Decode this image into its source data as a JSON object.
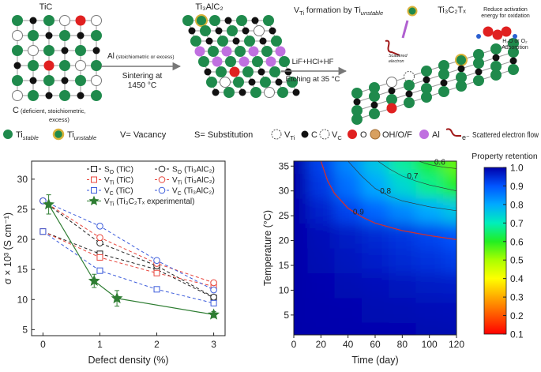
{
  "schematic": {
    "tic_title": "TiC",
    "max_title": "Ti₃AlC₂",
    "mxene_title": "Ti₃C₂Tₓ",
    "vti_formation": {
      "v": "V",
      "v_sub": "Ti",
      "text": " formation by Ti",
      "sub": "unstable"
    },
    "arrow1": {
      "top": "Al",
      "top_note": "(stoichiometric or excess)",
      "bottom": [
        "Sintering at",
        "1450 °C"
      ]
    },
    "arrow2": {
      "top": "LiF+HCl+HF",
      "bottom": "Etching at 35 °C"
    },
    "c_note": {
      "c": "C",
      "lines": [
        "(deficient, stoichiometric,",
        "excess)"
      ]
    },
    "oxidation": [
      "Reduce activation",
      "energy for oxidation"
    ],
    "adsorption": [
      "H₂O or O₂",
      "Adsorption"
    ],
    "scattered": [
      "Scattered",
      "electron"
    ],
    "legend": [
      {
        "label": "Ti",
        "sub": "stable"
      },
      {
        "label": "Ti",
        "sub": "unstable"
      },
      {
        "label": "V= Vacancy"
      },
      {
        "label": "S= Substitution"
      },
      {
        "label": "V",
        "sub": "Ti"
      },
      {
        "label": "C"
      },
      {
        "label": "V",
        "sub": "C"
      },
      {
        "label": "O"
      },
      {
        "label": "OH/O/F"
      },
      {
        "label": "Al"
      },
      {
        "label": "e⁻",
        "text": "Scattered electron flow"
      }
    ]
  },
  "chart_data": [
    {
      "type": "line",
      "ylabel": "σ × 10³ (S cm⁻¹)",
      "xlabel": "Defect density (%)",
      "xlim": [
        -0.2,
        3.2
      ],
      "ylim": [
        4,
        33
      ],
      "xticks": [
        0,
        1,
        2,
        3
      ],
      "yticks": [
        5,
        10,
        15,
        20,
        25,
        30
      ],
      "series": [
        {
          "label": "S",
          "label_sub": "O",
          "name": "(TiC)",
          "color": "#222222",
          "marker": "square",
          "dashed": true,
          "x": [
            0,
            1,
            2,
            3
          ],
          "values": [
            21.3,
            17.6,
            15.0,
            10.3
          ]
        },
        {
          "label": "S",
          "label_sub": "O",
          "name": "(Ti₃AlC₂)",
          "color": "#222222",
          "marker": "circle",
          "dashed": true,
          "x": [
            0,
            1,
            2,
            3
          ],
          "values": [
            26.4,
            19.4,
            15.6,
            10.4
          ]
        },
        {
          "label": "V",
          "label_sub": "Ti",
          "name": "(TiC)",
          "color": "#e8453c",
          "marker": "square",
          "dashed": true,
          "x": [
            0,
            1,
            2,
            3
          ],
          "values": [
            21.3,
            17.0,
            14.4,
            12.2
          ]
        },
        {
          "label": "V",
          "label_sub": "Ti",
          "name": "(Ti₃AlC₂)",
          "color": "#e8453c",
          "marker": "circle",
          "dashed": true,
          "x": [
            0,
            1,
            2,
            3
          ],
          "values": [
            26.4,
            20.3,
            16.0,
            12.8
          ]
        },
        {
          "label": "V",
          "label_sub": "C",
          "name": "(TiC)",
          "color": "#3b5bdb",
          "marker": "square",
          "dashed": true,
          "x": [
            0,
            1,
            2,
            3
          ],
          "values": [
            21.3,
            14.8,
            11.7,
            9.4
          ]
        },
        {
          "label": "V",
          "label_sub": "C",
          "name": "(Ti₃AlC₂)",
          "color": "#3b5bdb",
          "marker": "circle",
          "dashed": true,
          "x": [
            0,
            1,
            2,
            3
          ],
          "values": [
            26.4,
            22.2,
            16.5,
            11.6
          ]
        },
        {
          "label": "V",
          "label_sub": "Ti",
          "name": "(Ti₃C₂Tₓ experimental)",
          "color": "#2e7d32",
          "marker": "star",
          "dashed": false,
          "x": [
            0.1,
            0.9,
            1.3,
            3
          ],
          "values": [
            25.8,
            13.1,
            10.2,
            7.5
          ],
          "errors": [
            1.6,
            1.1,
            1.3,
            0.5
          ]
        }
      ]
    },
    {
      "type": "contour",
      "xlabel": "Time (day)",
      "ylabel": "Temperature (°C)",
      "colorbar_label": "Property retention",
      "xlim": [
        0,
        120
      ],
      "ylim": [
        1,
        36
      ],
      "xticks": [
        0,
        20,
        40,
        60,
        80,
        100,
        120
      ],
      "yticks": [
        5,
        10,
        15,
        20,
        25,
        30,
        35
      ],
      "x": [
        0,
        20,
        40,
        60,
        80,
        100,
        120
      ],
      "y": [
        1,
        6,
        11,
        16,
        21,
        26,
        31,
        36
      ],
      "z": [
        [
          1,
          0.998,
          0.997,
          0.995,
          0.994,
          0.992,
          0.99
        ],
        [
          1,
          0.997,
          0.994,
          0.991,
          0.988,
          0.985,
          0.982
        ],
        [
          1,
          0.994,
          0.988,
          0.982,
          0.976,
          0.97,
          0.964
        ],
        [
          1,
          0.988,
          0.976,
          0.964,
          0.952,
          0.94,
          0.928
        ],
        [
          1,
          0.984,
          0.968,
          0.952,
          0.936,
          0.92,
          0.904
        ],
        [
          1,
          0.96,
          0.92,
          0.88,
          0.84,
          0.8,
          0.76
        ],
        [
          1,
          0.934,
          0.868,
          0.802,
          0.736,
          0.67,
          0.604
        ],
        [
          1,
          0.92,
          0.84,
          0.76,
          0.68,
          0.61,
          0.55
        ]
      ],
      "zlim": [
        0.1,
        1
      ],
      "zticks": [
        0.1,
        0.2,
        0.3,
        0.4,
        0.5,
        0.6,
        0.7,
        0.8,
        0.9,
        {
          "value": 1,
          "label": "1.0"
        }
      ],
      "colormap": [
        "#ff0000",
        "#ff5500",
        "#ffaa00",
        "#ffff00",
        "#aaff00",
        "#22ee22",
        "#00eebb",
        "#00aaff",
        "#0055ff",
        "#0000aa"
      ],
      "contours": [
        {
          "level": 0.9,
          "color": "#d03030",
          "x": [
            20,
            25,
            30,
            40,
            50,
            60,
            80,
            100,
            120
          ],
          "y": [
            36,
            32,
            29.5,
            26.5,
            24.8,
            23.5,
            22,
            21,
            20.2
          ]
        },
        {
          "level": 0.8,
          "color": "#333333",
          "x": [
            40,
            50,
            60,
            70,
            80,
            100,
            120
          ],
          "y": [
            36,
            33,
            30.5,
            29,
            28,
            26.8,
            26
          ]
        },
        {
          "level": 0.7,
          "color": "#333333",
          "x": [
            62,
            70,
            80,
            90,
            100,
            120
          ],
          "y": [
            36,
            34.5,
            33,
            32,
            31.2,
            30
          ]
        },
        {
          "level": 0.6,
          "color": "#333333",
          "x": [
            92,
            100,
            110,
            120
          ],
          "y": [
            36,
            35.3,
            34.8,
            34.5
          ]
        }
      ]
    }
  ]
}
